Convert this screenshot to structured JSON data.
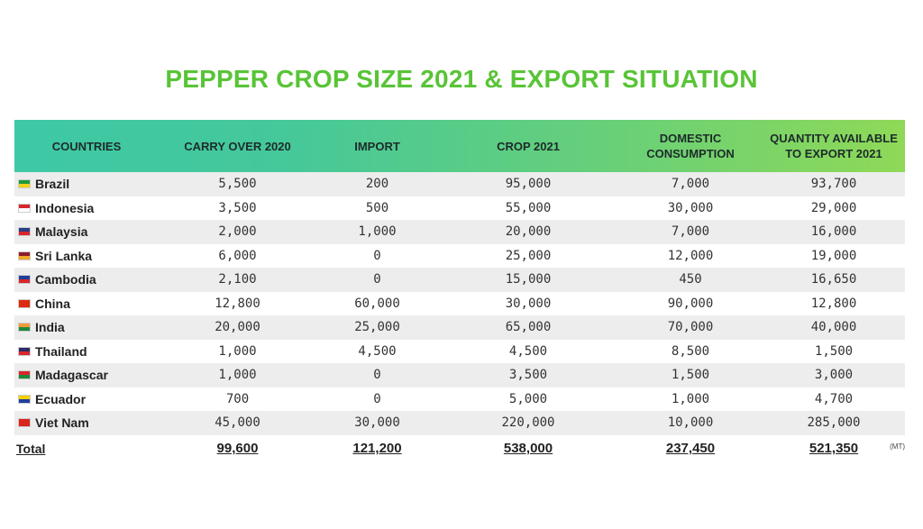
{
  "title": "PEPPER CROP SIZE 2021 & EXPORT SITUATION",
  "headers": {
    "countries": "COUNTRIES",
    "carry_over": "CARRY OVER 2020",
    "import": "IMPORT",
    "crop": "CROP 2021",
    "domestic_1": "DOMESTIC",
    "domestic_2": "CONSUMPTION",
    "quantity_1": "QUANTITY AVAILABLE",
    "quantity_2": "TO EXPORT 2021"
  },
  "rows": [
    {
      "country": "Brazil",
      "flag_colors": [
        "#1f9a3a",
        "#f3d21b"
      ],
      "carry_over": "5,500",
      "import": "200",
      "crop": "95,000",
      "domestic": "7,000",
      "export": "93,700"
    },
    {
      "country": "Indonesia",
      "flag_colors": [
        "#d8262e",
        "#ffffff"
      ],
      "carry_over": "3,500",
      "import": "500",
      "crop": "55,000",
      "domestic": "30,000",
      "export": "29,000"
    },
    {
      "country": "Malaysia",
      "flag_colors": [
        "#2c3d86",
        "#d8262e"
      ],
      "carry_over": "2,000",
      "import": "1,000",
      "crop": "20,000",
      "domestic": "7,000",
      "export": "16,000"
    },
    {
      "country": "Sri Lanka",
      "flag_colors": [
        "#8e1b2a",
        "#f0a928"
      ],
      "carry_over": "6,000",
      "import": "0",
      "crop": "25,000",
      "domestic": "12,000",
      "export": "19,000"
    },
    {
      "country": "Cambodia",
      "flag_colors": [
        "#1f3f9a",
        "#d8262e"
      ],
      "carry_over": "2,100",
      "import": "0",
      "crop": "15,000",
      "domestic": "450",
      "export": "16,650"
    },
    {
      "country": "China",
      "flag_colors": [
        "#de2910",
        "#de2910"
      ],
      "carry_over": "12,800",
      "import": "60,000",
      "crop": "30,000",
      "domestic": "90,000",
      "export": "12,800"
    },
    {
      "country": "India",
      "flag_colors": [
        "#f29a38",
        "#1d8a3a"
      ],
      "carry_over": "20,000",
      "import": "25,000",
      "crop": "65,000",
      "domestic": "70,000",
      "export": "40,000"
    },
    {
      "country": "Thailand",
      "flag_colors": [
        "#2d2a64",
        "#d8262e"
      ],
      "carry_over": "1,000",
      "import": "4,500",
      "crop": "4,500",
      "domestic": "8,500",
      "export": "1,500"
    },
    {
      "country": "Madagascar",
      "flag_colors": [
        "#d8262e",
        "#1d8a3a"
      ],
      "carry_over": "1,000",
      "import": "0",
      "crop": "3,500",
      "domestic": "1,500",
      "export": "3,000"
    },
    {
      "country": "Ecuador",
      "flag_colors": [
        "#f6d100",
        "#1f3f9a"
      ],
      "carry_over": "700",
      "import": "0",
      "crop": "5,000",
      "domestic": "1,000",
      "export": "4,700"
    },
    {
      "country": "Viet Nam",
      "flag_colors": [
        "#da251d",
        "#da251d"
      ],
      "carry_over": "45,000",
      "import": "30,000",
      "crop": "220,000",
      "domestic": "10,000",
      "export": "285,000"
    }
  ],
  "total": {
    "label": "Total",
    "carry_over": "99,600",
    "import": "121,200",
    "crop": "538,000",
    "domestic": "237,450",
    "export": "521,350",
    "unit": "(MT)"
  }
}
